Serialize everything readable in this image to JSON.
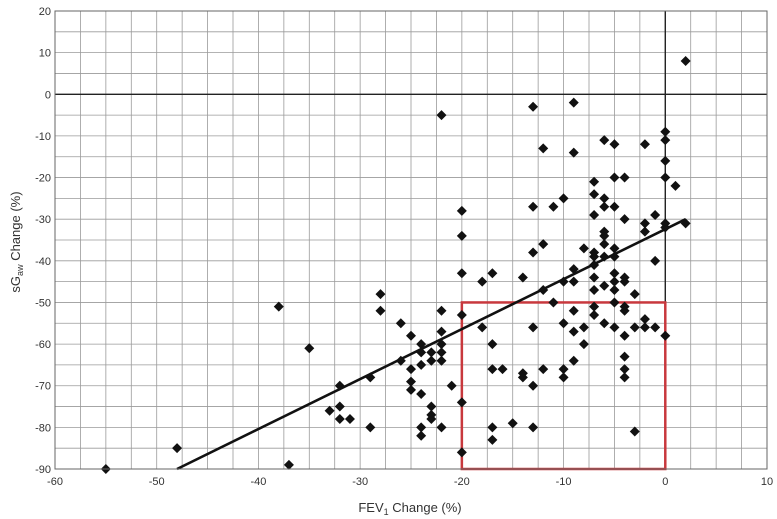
{
  "chart_data": {
    "type": "scatter",
    "title": "",
    "xlabel": {
      "prefix": "FEV",
      "sub": "1",
      "suffix": " Change (%)"
    },
    "ylabel": {
      "prefix": "sG",
      "sub": "aw",
      "suffix": " Change (%)"
    },
    "xlim": [
      -60,
      10
    ],
    "ylim": [
      -90,
      20
    ],
    "x_ticks": [
      -60,
      -50,
      -40,
      -30,
      -20,
      -10,
      0,
      10
    ],
    "y_ticks": [
      20,
      10,
      0,
      -10,
      -20,
      -30,
      -40,
      -50,
      -60,
      -70,
      -80,
      -90
    ],
    "x_minor_step": 2.5,
    "y_minor_step": 5,
    "grid": true,
    "zero_lines": true,
    "marker": "diamond",
    "marker_color": "#111111",
    "series": [
      {
        "name": "",
        "points": [
          [
            -55,
            -90
          ],
          [
            -48,
            -85
          ],
          [
            -38,
            -51
          ],
          [
            -37,
            -89
          ],
          [
            -35,
            -61
          ],
          [
            -33,
            -76
          ],
          [
            -32,
            -70
          ],
          [
            -32,
            -75
          ],
          [
            -32,
            -78
          ],
          [
            -31,
            -78
          ],
          [
            -29,
            -68
          ],
          [
            -29,
            -80
          ],
          [
            -28,
            -48
          ],
          [
            -28,
            -52
          ],
          [
            -26,
            -55
          ],
          [
            -26,
            -64
          ],
          [
            -25,
            -58
          ],
          [
            -25,
            -66
          ],
          [
            -25,
            -69
          ],
          [
            -25,
            -71
          ],
          [
            -24,
            -60
          ],
          [
            -24,
            -62
          ],
          [
            -24,
            -65
          ],
          [
            -24,
            -72
          ],
          [
            -24,
            -80
          ],
          [
            -24,
            -82
          ],
          [
            -23,
            -62
          ],
          [
            -23,
            -64
          ],
          [
            -23,
            -75
          ],
          [
            -23,
            -77
          ],
          [
            -23,
            -78
          ],
          [
            -22,
            -5
          ],
          [
            -22,
            -52
          ],
          [
            -22,
            -57
          ],
          [
            -22,
            -60
          ],
          [
            -22,
            -62
          ],
          [
            -22,
            -64
          ],
          [
            -22,
            -80
          ],
          [
            -21,
            -70
          ],
          [
            -20,
            -28
          ],
          [
            -20,
            -34
          ],
          [
            -20,
            -43
          ],
          [
            -20,
            -53
          ],
          [
            -20,
            -74
          ],
          [
            -20,
            -86
          ],
          [
            -18,
            -45
          ],
          [
            -18,
            -56
          ],
          [
            -17,
            -43
          ],
          [
            -17,
            -60
          ],
          [
            -17,
            -66
          ],
          [
            -17,
            -80
          ],
          [
            -17,
            -83
          ],
          [
            -16,
            -66
          ],
          [
            -15,
            -79
          ],
          [
            -14,
            -44
          ],
          [
            -14,
            -67
          ],
          [
            -14,
            -68
          ],
          [
            -13,
            -3
          ],
          [
            -13,
            -27
          ],
          [
            -13,
            -38
          ],
          [
            -13,
            -56
          ],
          [
            -13,
            -70
          ],
          [
            -13,
            -80
          ],
          [
            -12,
            -13
          ],
          [
            -12,
            -36
          ],
          [
            -12,
            -47
          ],
          [
            -12,
            -66
          ],
          [
            -11,
            -27
          ],
          [
            -11,
            -50
          ],
          [
            -10,
            -25
          ],
          [
            -10,
            -45
          ],
          [
            -10,
            -55
          ],
          [
            -10,
            -66
          ],
          [
            -10,
            -68
          ],
          [
            -9,
            -2
          ],
          [
            -9,
            -14
          ],
          [
            -9,
            -42
          ],
          [
            -9,
            -45
          ],
          [
            -9,
            -52
          ],
          [
            -9,
            -57
          ],
          [
            -9,
            -64
          ],
          [
            -8,
            -37
          ],
          [
            -8,
            -56
          ],
          [
            -8,
            -60
          ],
          [
            -7,
            -21
          ],
          [
            -7,
            -24
          ],
          [
            -7,
            -29
          ],
          [
            -7,
            -38
          ],
          [
            -7,
            -39
          ],
          [
            -7,
            -41
          ],
          [
            -7,
            -44
          ],
          [
            -7,
            -47
          ],
          [
            -7,
            -51
          ],
          [
            -7,
            -53
          ],
          [
            -6,
            -11
          ],
          [
            -6,
            -25
          ],
          [
            -6,
            -27
          ],
          [
            -6,
            -33
          ],
          [
            -6,
            -34
          ],
          [
            -6,
            -36
          ],
          [
            -6,
            -39
          ],
          [
            -6,
            -46
          ],
          [
            -6,
            -55
          ],
          [
            -5,
            -12
          ],
          [
            -5,
            -20
          ],
          [
            -5,
            -27
          ],
          [
            -5,
            -37
          ],
          [
            -5,
            -39
          ],
          [
            -5,
            -43
          ],
          [
            -5,
            -45
          ],
          [
            -5,
            -47
          ],
          [
            -5,
            -50
          ],
          [
            -5,
            -56
          ],
          [
            -4,
            -20
          ],
          [
            -4,
            -30
          ],
          [
            -4,
            -44
          ],
          [
            -4,
            -45
          ],
          [
            -4,
            -51
          ],
          [
            -4,
            -52
          ],
          [
            -4,
            -58
          ],
          [
            -4,
            -63
          ],
          [
            -4,
            -66
          ],
          [
            -4,
            -68
          ],
          [
            -3,
            -48
          ],
          [
            -3,
            -56
          ],
          [
            -3,
            -81
          ],
          [
            -2,
            -12
          ],
          [
            -2,
            -31
          ],
          [
            -2,
            -33
          ],
          [
            -2,
            -54
          ],
          [
            -2,
            -56
          ],
          [
            -1,
            -29
          ],
          [
            -1,
            -40
          ],
          [
            -1,
            -56
          ],
          [
            0,
            -9
          ],
          [
            0,
            -11
          ],
          [
            0,
            -16
          ],
          [
            0,
            -20
          ],
          [
            0,
            -31
          ],
          [
            0,
            -32
          ],
          [
            0,
            -58
          ],
          [
            1,
            -22
          ],
          [
            2,
            -31
          ],
          [
            2,
            8
          ]
        ]
      }
    ],
    "trendline": {
      "x": [
        -48,
        2
      ],
      "y": [
        -90,
        -30
      ]
    },
    "highlight_box": {
      "x": [
        -20,
        0
      ],
      "y": [
        -90,
        -50
      ],
      "color": "#c8383d"
    },
    "colors": {
      "grid": "#9a9a9a",
      "zero_line": "#222222",
      "frame": "#666666",
      "trendline": "#111111",
      "tick_text": "#333333"
    }
  }
}
